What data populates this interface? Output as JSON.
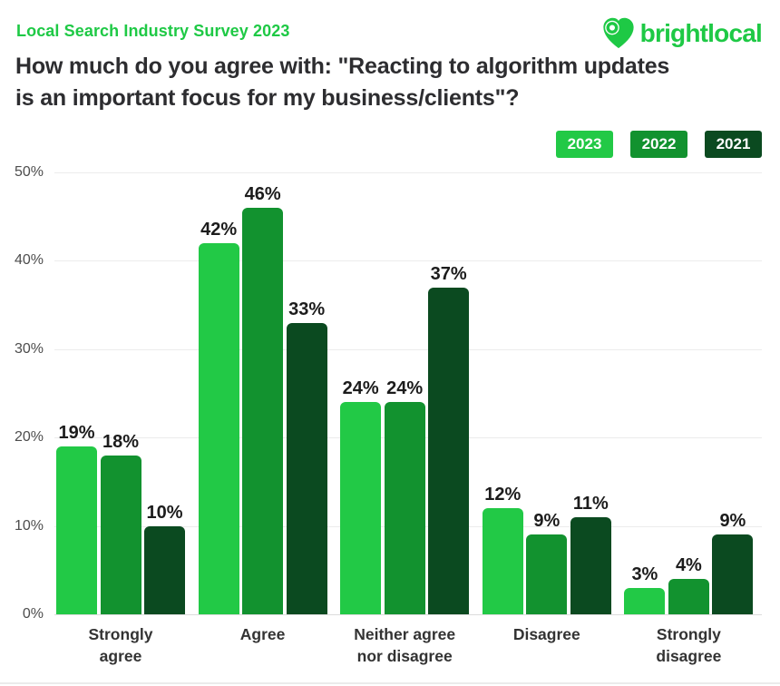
{
  "header": {
    "eyebrow": "Local Search Industry Survey 2023",
    "title": "How much do you agree with: \"Reacting to algorithm updates\nis an important focus for my business/clients\"?",
    "logo_text": "brightlocal"
  },
  "colors": {
    "brand_green": "#1EC945",
    "series_2023": "#22C946",
    "series_2022": "#12922F",
    "series_2021": "#0B4A20",
    "title_text": "#2D2D30",
    "gridline": "#ececec",
    "background": "#ffffff"
  },
  "chart_data": {
    "type": "bar",
    "title": "How much do you agree with: \"Reacting to algorithm updates is an important focus for my business/clients\"?",
    "categories": [
      "Strongly agree",
      "Agree",
      "Neither agree nor disagree",
      "Disagree",
      "Strongly disagree"
    ],
    "category_labels": [
      "Strongly\nagree",
      "Agree",
      "Neither agree\nnor disagree",
      "Disagree",
      "Strongly\ndisagree"
    ],
    "series": [
      {
        "name": "2023",
        "color": "#22C946",
        "values": [
          19,
          42,
          24,
          12,
          3
        ]
      },
      {
        "name": "2022",
        "color": "#12922F",
        "values": [
          18,
          46,
          24,
          9,
          4
        ]
      },
      {
        "name": "2021",
        "color": "#0B4A20",
        "values": [
          10,
          33,
          37,
          11,
          9
        ]
      }
    ],
    "value_label_suffix": "%",
    "xlabel": "",
    "ylabel": "",
    "ylim": [
      0,
      50
    ],
    "yticks": [
      0,
      10,
      20,
      30,
      40,
      50
    ],
    "ytick_labels": [
      "0%",
      "10%",
      "20%",
      "30%",
      "40%",
      "50%"
    ],
    "grid": true,
    "legend_position": "top-right"
  }
}
